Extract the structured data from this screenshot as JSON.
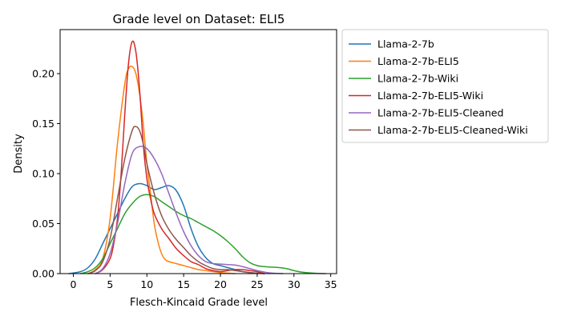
{
  "chart_data": {
    "type": "line",
    "title": "Grade level on Dataset: ELI5",
    "xlabel": "Flesch-Kincaid Grade level",
    "ylabel": "Density",
    "xlim": [
      -1.8,
      35.8
    ],
    "ylim": [
      0,
      0.244
    ],
    "xticks": [
      0,
      5,
      10,
      15,
      20,
      25,
      30,
      35
    ],
    "yticks": [
      0.0,
      0.05,
      0.1,
      0.15,
      0.2
    ],
    "ytick_labels": [
      "0.00",
      "0.05",
      "0.10",
      "0.15",
      "0.20"
    ],
    "grid": false,
    "legend_position": "outside-right",
    "series": [
      {
        "name": "Llama-2-7b",
        "color": "#1f77b4",
        "x": [
          -0.6,
          1,
          2,
          3,
          4,
          5,
          6,
          7,
          8,
          9,
          10,
          11,
          12,
          13,
          14,
          15,
          16,
          17,
          18,
          19,
          20,
          21,
          22,
          23,
          24,
          25,
          26
        ],
        "y": [
          0.0,
          0.002,
          0.006,
          0.015,
          0.03,
          0.045,
          0.06,
          0.075,
          0.087,
          0.09,
          0.088,
          0.084,
          0.086,
          0.088,
          0.083,
          0.068,
          0.045,
          0.027,
          0.016,
          0.01,
          0.008,
          0.006,
          0.004,
          0.002,
          0.001,
          0.0005,
          0.0
        ]
      },
      {
        "name": "Llama-2-7b-ELI5",
        "color": "#ff7f0e",
        "x": [
          2,
          3,
          4,
          5,
          6,
          7,
          7.5,
          8,
          8.5,
          9,
          9.5,
          10,
          10.5,
          11,
          11.5,
          12,
          12.5,
          13,
          14,
          15,
          16,
          17,
          18,
          19,
          20,
          21,
          22
        ],
        "y": [
          0.0,
          0.004,
          0.015,
          0.055,
          0.13,
          0.19,
          0.205,
          0.207,
          0.2,
          0.18,
          0.15,
          0.11,
          0.08,
          0.05,
          0.032,
          0.02,
          0.014,
          0.012,
          0.01,
          0.008,
          0.006,
          0.004,
          0.003,
          0.002,
          0.001,
          0.0005,
          0.0
        ]
      },
      {
        "name": "Llama-2-7b-Wiki",
        "color": "#2ca02c",
        "x": [
          1,
          2,
          3,
          4,
          5,
          6,
          7,
          8,
          9,
          10,
          11,
          12,
          13,
          14,
          15,
          16,
          17,
          18,
          19,
          20,
          21,
          22,
          23,
          24,
          25,
          26,
          27,
          28,
          29,
          30,
          31,
          32,
          33,
          34.3
        ],
        "y": [
          0.0,
          0.002,
          0.006,
          0.015,
          0.03,
          0.045,
          0.06,
          0.07,
          0.077,
          0.079,
          0.077,
          0.072,
          0.067,
          0.062,
          0.058,
          0.055,
          0.051,
          0.047,
          0.043,
          0.038,
          0.032,
          0.025,
          0.017,
          0.011,
          0.008,
          0.007,
          0.0065,
          0.006,
          0.005,
          0.003,
          0.0015,
          0.0008,
          0.0003,
          0.0
        ]
      },
      {
        "name": "Llama-2-7b-ELI5-Wiki",
        "color": "#d62728",
        "x": [
          3,
          4,
          5,
          5.5,
          6,
          6.5,
          7,
          7.5,
          8,
          8.5,
          9,
          9.5,
          10,
          10.5,
          11,
          12,
          13,
          14,
          15,
          16,
          17,
          18,
          19,
          20,
          21,
          22,
          23,
          24,
          25,
          26
        ],
        "y": [
          0.0,
          0.004,
          0.015,
          0.03,
          0.055,
          0.1,
          0.16,
          0.21,
          0.232,
          0.222,
          0.185,
          0.13,
          0.095,
          0.075,
          0.06,
          0.045,
          0.035,
          0.025,
          0.018,
          0.012,
          0.009,
          0.005,
          0.003,
          0.002,
          0.003,
          0.004,
          0.004,
          0.003,
          0.002,
          0.0
        ]
      },
      {
        "name": "Llama-2-7b-ELI5-Cleaned",
        "color": "#9467bd",
        "x": [
          3,
          4,
          5,
          6,
          7,
          8,
          9,
          10,
          11,
          12,
          13,
          14,
          15,
          16,
          17,
          18,
          19,
          20,
          21,
          22,
          23,
          24,
          25,
          26,
          27,
          28.5
        ],
        "y": [
          0.0,
          0.005,
          0.02,
          0.05,
          0.09,
          0.12,
          0.127,
          0.125,
          0.115,
          0.1,
          0.08,
          0.06,
          0.042,
          0.028,
          0.018,
          0.012,
          0.01,
          0.0095,
          0.009,
          0.0085,
          0.007,
          0.005,
          0.003,
          0.0015,
          0.0005,
          0.0
        ]
      },
      {
        "name": "Llama-2-7b-ELI5-Cleaned-Wiki",
        "color": "#8c564b",
        "x": [
          2,
          3,
          4,
          5,
          6,
          7,
          8,
          8.5,
          9,
          9.5,
          10,
          11,
          12,
          13,
          14,
          15,
          16,
          17,
          18,
          19,
          20,
          21,
          22,
          23,
          24,
          25,
          26
        ],
        "y": [
          0.0,
          0.003,
          0.012,
          0.035,
          0.075,
          0.115,
          0.143,
          0.147,
          0.143,
          0.13,
          0.11,
          0.08,
          0.058,
          0.044,
          0.034,
          0.026,
          0.018,
          0.012,
          0.008,
          0.005,
          0.004,
          0.004,
          0.003,
          0.002,
          0.001,
          0.0005,
          0.0
        ]
      }
    ]
  }
}
